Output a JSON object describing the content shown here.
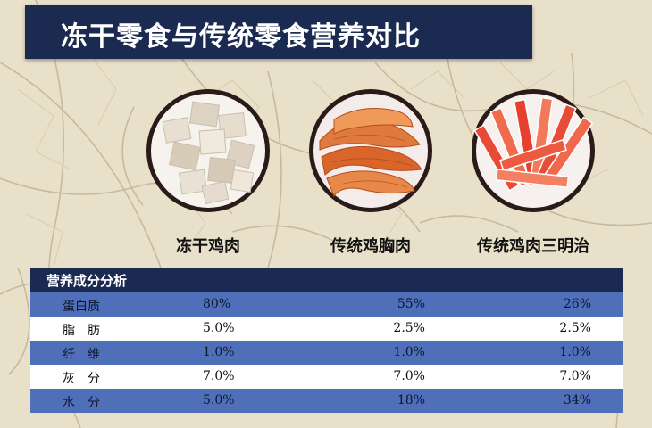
{
  "title": "冻干零食与传统零食营养对比",
  "products": [
    {
      "name": "冻干鸡肉",
      "icon": "freeze-dried-chicken-cubes-photo"
    },
    {
      "name": "传统鸡胸肉",
      "icon": "chicken-breast-jerky-photo"
    },
    {
      "name": "传统鸡肉三明治",
      "icon": "chicken-sandwich-sticks-photo"
    }
  ],
  "table": {
    "header": "营养成分分析",
    "rows": [
      {
        "label": "蛋白质",
        "values": [
          "80%",
          "55%",
          "26%"
        ]
      },
      {
        "label": "脂　肪",
        "values": [
          "5.0%",
          "2.5%",
          "2.5%"
        ]
      },
      {
        "label": "纤　维",
        "values": [
          "1.0%",
          "1.0%",
          "1.0%"
        ]
      },
      {
        "label": "灰　分",
        "values": [
          "7.0%",
          "7.0%",
          "7.0%"
        ]
      },
      {
        "label": "水　分",
        "values": [
          "5.0%",
          "18%",
          "34%"
        ]
      }
    ]
  },
  "colors": {
    "navy": "#1b2a50",
    "row_blue": "#4f6fb8",
    "background": "#e8dfc8"
  }
}
